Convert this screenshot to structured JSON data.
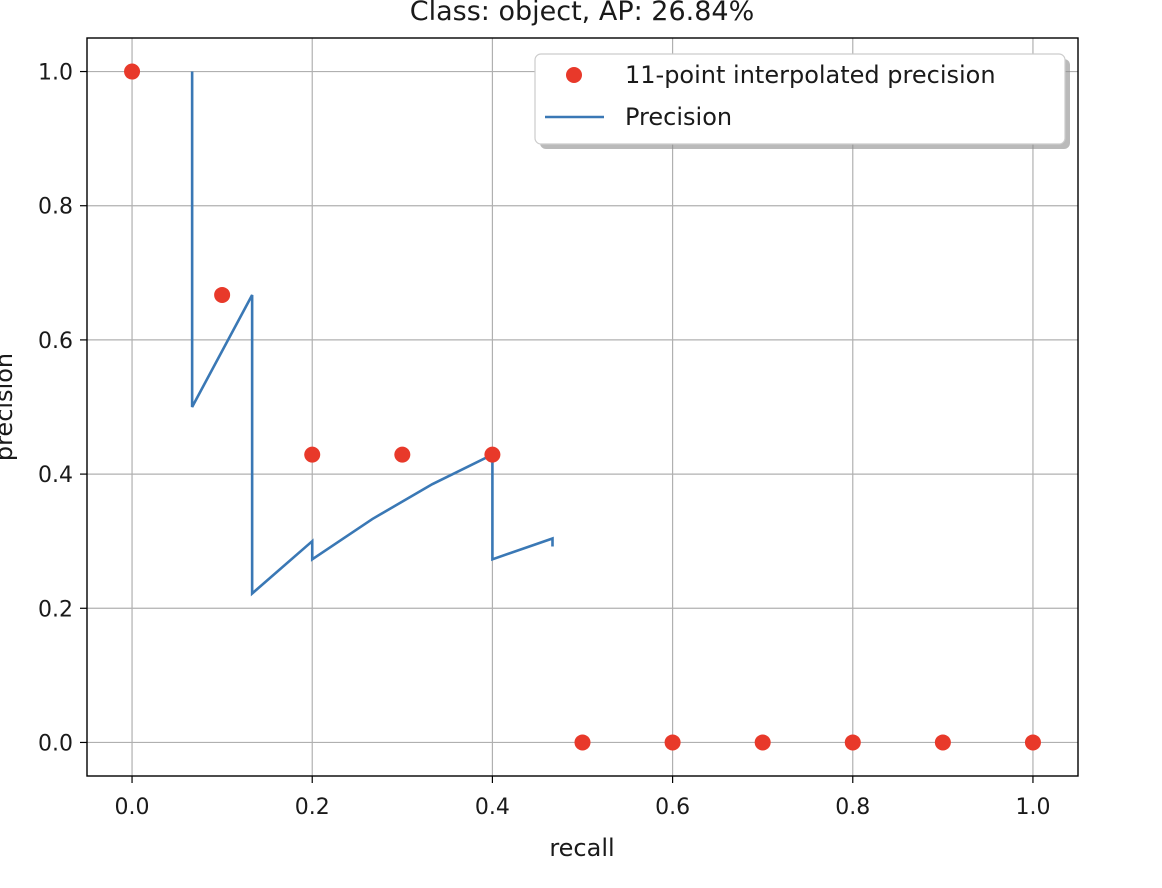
{
  "chart_data": {
    "type": "line",
    "title": "Class: object, AP: 26.84%",
    "xlabel": "recall",
    "ylabel": "precision",
    "xlim": [
      -0.05,
      1.05
    ],
    "ylim": [
      -0.05,
      1.05
    ],
    "xticks": [
      0.0,
      0.2,
      0.4,
      0.6,
      0.8,
      1.0
    ],
    "yticks": [
      0.0,
      0.2,
      0.4,
      0.6,
      0.8,
      1.0
    ],
    "xtick_labels": [
      "0.0",
      "0.2",
      "0.4",
      "0.6",
      "0.8",
      "1.0"
    ],
    "ytick_labels": [
      "0.0",
      "0.2",
      "0.4",
      "0.6",
      "0.8",
      "1.0"
    ],
    "grid": true,
    "legend_position": "top-right",
    "series": [
      {
        "name": "11-point interpolated precision",
        "kind": "scatter",
        "color": "#e8392a",
        "x": [
          0.0,
          0.1,
          0.2,
          0.3,
          0.4,
          0.5,
          0.6,
          0.7,
          0.8,
          0.9,
          1.0
        ],
        "y": [
          1.0,
          0.667,
          0.429,
          0.429,
          0.429,
          0.0,
          0.0,
          0.0,
          0.0,
          0.0,
          0.0
        ]
      },
      {
        "name": "Precision",
        "kind": "line",
        "color": "#3a78b5",
        "x": [
          0.0667,
          0.0667,
          0.1333,
          0.1333,
          0.2,
          0.2,
          0.2667,
          0.3333,
          0.4,
          0.4,
          0.4667,
          0.4667
        ],
        "y": [
          1.0,
          0.5,
          0.667,
          0.222,
          0.3,
          0.273,
          0.333,
          0.385,
          0.429,
          0.273,
          0.304,
          0.292
        ]
      }
    ]
  }
}
